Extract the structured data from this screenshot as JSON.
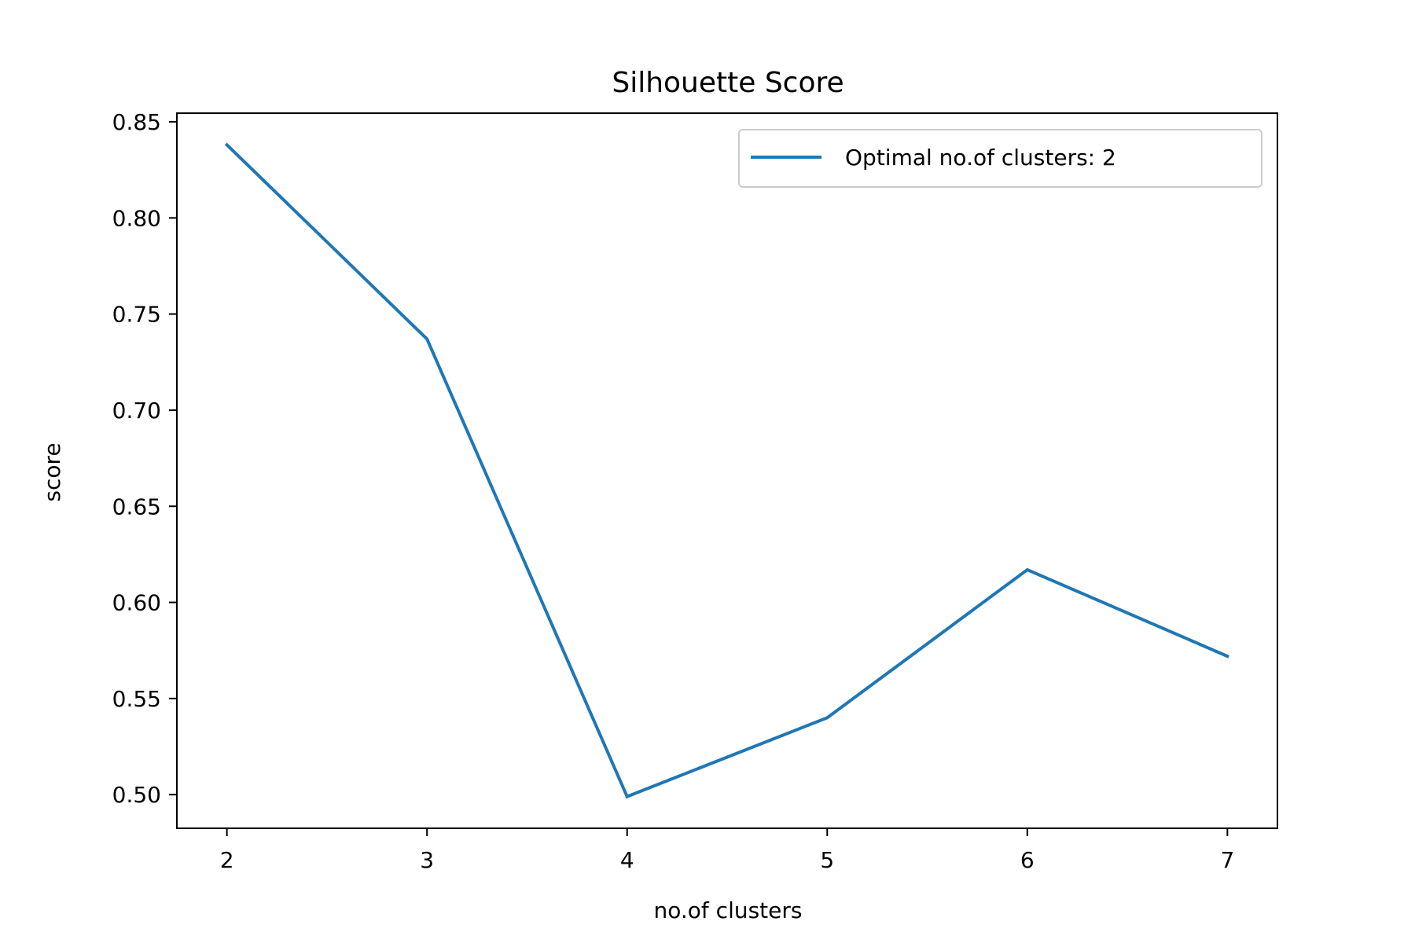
{
  "chart_data": {
    "type": "line",
    "title": "Silhouette Score",
    "xlabel": "no.of clusters",
    "ylabel": "score",
    "xlim": [
      1.75,
      7.25
    ],
    "ylim": [
      0.4825,
      0.8545
    ],
    "x_ticks": [
      2,
      3,
      4,
      5,
      6,
      7
    ],
    "y_ticks": [
      0.5,
      0.55,
      0.6,
      0.65,
      0.7,
      0.75,
      0.8,
      0.85
    ],
    "y_tick_labels": [
      "0.50",
      "0.55",
      "0.60",
      "0.65",
      "0.70",
      "0.75",
      "0.80",
      "0.85"
    ],
    "grid": false,
    "legend_position": "top-right",
    "series": [
      {
        "name": "Optimal no.of clusters: 2",
        "color": "#1f77b4",
        "x": [
          2,
          3,
          4,
          5,
          6,
          7
        ],
        "y": [
          0.838,
          0.737,
          0.499,
          0.54,
          0.617,
          0.572
        ]
      }
    ]
  }
}
